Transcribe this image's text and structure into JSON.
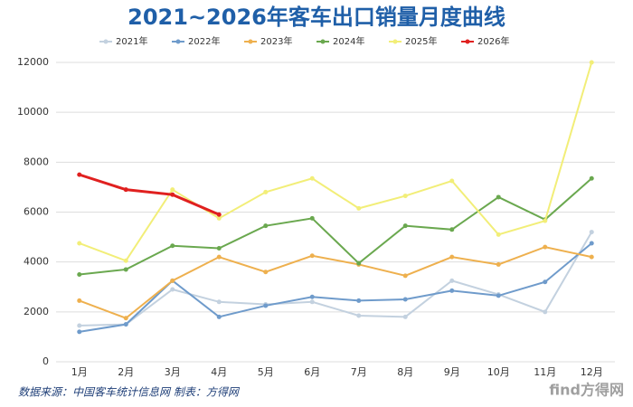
{
  "chart_data": {
    "type": "line",
    "title": "2021~2026年客车出口销量月度曲线",
    "categories": [
      "1月",
      "2月",
      "3月",
      "4月",
      "5月",
      "6月",
      "7月",
      "8月",
      "9月",
      "10月",
      "11月",
      "12月"
    ],
    "series": [
      {
        "name": "2021年",
        "color": "#c3d1df",
        "values": [
          1450,
          1500,
          2900,
          2400,
          2300,
          2400,
          1850,
          1800,
          3250,
          2700,
          2000,
          5200
        ]
      },
      {
        "name": "2022年",
        "color": "#6f9bcb",
        "values": [
          1200,
          1500,
          3250,
          1800,
          2250,
          2600,
          2450,
          2500,
          2850,
          2650,
          3200,
          4750
        ]
      },
      {
        "name": "2023年",
        "color": "#eeb04e",
        "values": [
          2450,
          1750,
          3250,
          4200,
          3600,
          4250,
          3900,
          3450,
          4200,
          3900,
          4600,
          4200
        ]
      },
      {
        "name": "2024年",
        "color": "#6aa84f",
        "values": [
          3500,
          3700,
          4650,
          4550,
          5450,
          5750,
          3950,
          5450,
          5300,
          6600,
          5700,
          7350
        ]
      },
      {
        "name": "2025年",
        "color": "#f2ee78",
        "values": [
          4750,
          4050,
          6900,
          5750,
          6800,
          7350,
          6150,
          6650,
          7250,
          5100,
          5650,
          12000
        ]
      },
      {
        "name": "2026年",
        "color": "#e0201f",
        "values": [
          7500,
          6900,
          6700,
          5900,
          null,
          null,
          null,
          null,
          null,
          null,
          null,
          null
        ]
      }
    ],
    "ylim": [
      0,
      12000
    ],
    "yticks": [
      0,
      2000,
      4000,
      6000,
      8000,
      10000,
      12000
    ],
    "grid": true,
    "source": "数据来源：中国客车统计信息网  制表：方得网",
    "watermark": "find方得网"
  }
}
